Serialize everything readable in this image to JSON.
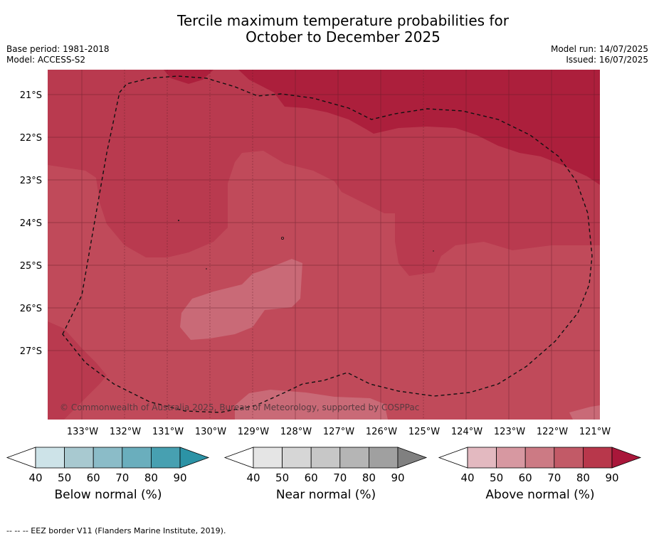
{
  "title_line1": "Tercile maximum temperature probabilities for",
  "title_line2": "October to December 2025",
  "base_period": "Base period: 1981-2018",
  "model": "Model: ACCESS-S2",
  "model_run": "Model run: 14/07/2025",
  "issued": "Issued: 16/07/2025",
  "copyright": "© Commonwealth of Australia 2025, Bureau of Meteorology, supported by COSPPac",
  "lat_labels": [
    "21°S",
    "22°S",
    "23°S",
    "24°S",
    "25°S",
    "26°S",
    "27°S"
  ],
  "lon_labels": [
    "133°W",
    "132°W",
    "131°W",
    "130°W",
    "129°W",
    "128°W",
    "127°W",
    "126°W",
    "125°W",
    "124°W",
    "123°W",
    "122°W",
    "121°W"
  ],
  "colorbars": [
    {
      "label": "Below normal (%)",
      "ticks": [
        "40",
        "50",
        "60",
        "70",
        "80",
        "90"
      ],
      "colors": [
        "#ffffff",
        "#cde3e8",
        "#a8c9d0",
        "#8bbcc8",
        "#6aaebd",
        "#47a0b1",
        "#2c93a6"
      ]
    },
    {
      "label": "Near normal (%)",
      "ticks": [
        "40",
        "50",
        "60",
        "70",
        "80",
        "90"
      ],
      "colors": [
        "#ffffff",
        "#e5e5e5",
        "#d6d6d6",
        "#c7c7c7",
        "#b5b5b5",
        "#a0a0a0",
        "#808080"
      ]
    },
    {
      "label": "Above normal (%)",
      "ticks": [
        "40",
        "50",
        "60",
        "70",
        "80",
        "90"
      ],
      "colors": [
        "#ffffff",
        "#e3b9c0",
        "#d798a1",
        "#cc7a84",
        "#c25a67",
        "#b8374b",
        "#a9173a"
      ]
    }
  ],
  "footnote": "--  --  -- EEZ border V11 (Flanders Marine Institute, 2019).",
  "map_colors": {
    "band_70_80": "#c04a5a",
    "band_80_90": "#b23548",
    "band_90_plus": "#a81c38",
    "band_60_70": "#c96a77"
  }
}
